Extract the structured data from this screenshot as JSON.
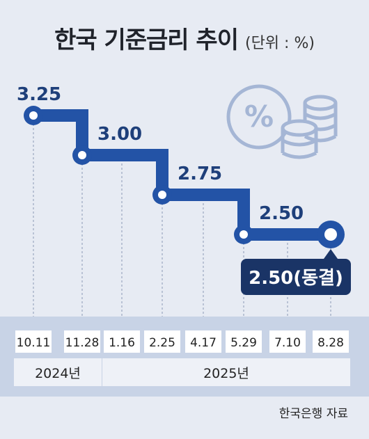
{
  "title": "한국 기준금리 추이",
  "unit": "(단위 : %)",
  "source": "한국은행 자료",
  "chart_data": {
    "type": "line",
    "step": true,
    "x": [
      "10.11",
      "11.28",
      "1.16",
      "2.25",
      "4.17",
      "5.29",
      "7.10",
      "8.28"
    ],
    "years": [
      {
        "label": "2024년",
        "from": 0,
        "to": 1
      },
      {
        "label": "2025년",
        "from": 2,
        "to": 7
      }
    ],
    "changes": [
      {
        "x_index": 0,
        "value": 3.25,
        "label": "3.25"
      },
      {
        "x_index": 1,
        "value": 3.0,
        "label": "3.00"
      },
      {
        "x_index": 3,
        "value": 2.75,
        "label": "2.75"
      },
      {
        "x_index": 5,
        "value": 2.5,
        "label": "2.50"
      }
    ],
    "values": [
      3.25,
      3.0,
      3.0,
      2.75,
      2.75,
      2.5,
      2.5,
      2.5
    ],
    "final": {
      "x_index": 7,
      "value": 2.5,
      "label": "2.50(동결)"
    },
    "colors": {
      "line": "#2353a6",
      "label": "#1e3f7a",
      "badge": "#1a3466",
      "icon": "#a5b6d5",
      "band": "#c8d3e6"
    }
  }
}
